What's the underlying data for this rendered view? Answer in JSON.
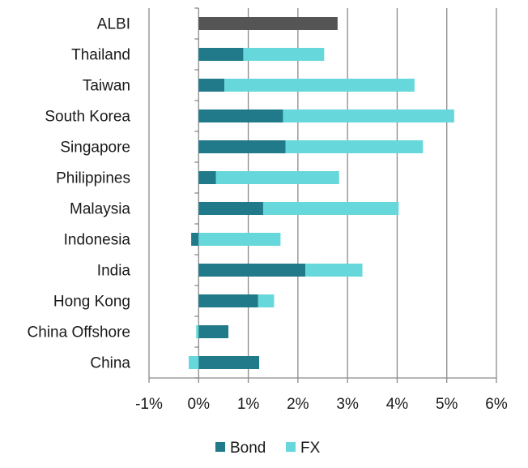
{
  "chart_data": {
    "type": "bar",
    "orientation": "horizontal",
    "stacked": true,
    "categories": [
      "ALBI",
      "Thailand",
      "Taiwan",
      "South Korea",
      "Singapore",
      "Philippines",
      "Malaysia",
      "Indonesia",
      "India",
      "Hong Kong",
      "China Offshore",
      "China"
    ],
    "total": {
      "name": "ALBI",
      "value": 2.8,
      "color": "#555555"
    },
    "series": [
      {
        "name": "Bond",
        "color": "#217a8a",
        "values": [
          null,
          0.9,
          0.52,
          1.7,
          1.75,
          0.35,
          1.3,
          -0.15,
          2.15,
          1.2,
          0.6,
          1.22
        ]
      },
      {
        "name": "FX",
        "color": "#66d8db",
        "values": [
          null,
          1.63,
          3.83,
          3.45,
          2.77,
          2.48,
          2.73,
          1.65,
          1.15,
          0.32,
          -0.05,
          -0.2
        ]
      }
    ],
    "xlim": [
      -1,
      6
    ],
    "xticks": [
      "-1%",
      "0%",
      "1%",
      "2%",
      "3%",
      "4%",
      "5%",
      "6%"
    ],
    "grid": "vertical",
    "legend": "bottom",
    "title": "",
    "xlabel": "",
    "ylabel": ""
  }
}
